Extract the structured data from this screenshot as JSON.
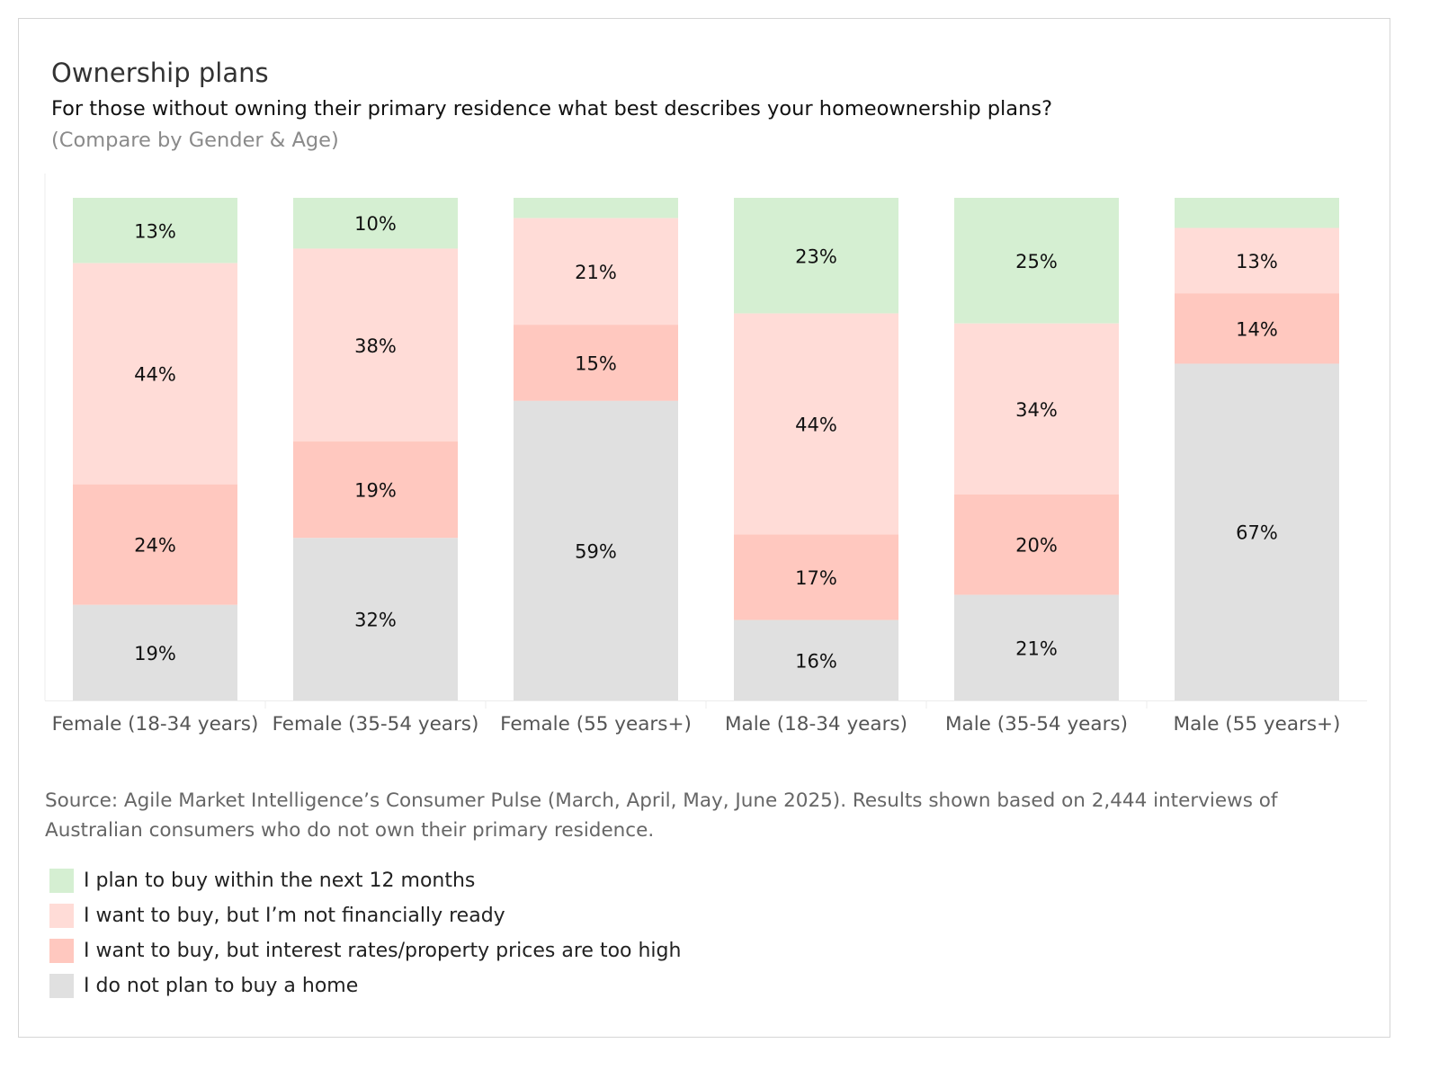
{
  "chart_data": {
    "type": "bar",
    "stacked": true,
    "title": "Ownership plans",
    "subtitle": "For those without owning their primary residence what best describes your homeownership plans?",
    "note": "(Compare by Gender & Age)",
    "categories": [
      "Female (18-34 years)",
      "Female (35-54 years)",
      "Female (55 years+)",
      "Male (18-34 years)",
      "Male (35-54 years)",
      "Male (55 years+)"
    ],
    "series": [
      {
        "name": "I plan to buy within the next 12 months",
        "color": "#d5efd2",
        "values": [
          13,
          10,
          4,
          23,
          25,
          6
        ],
        "labels": [
          "13%",
          "10%",
          "",
          "23%",
          "25%",
          ""
        ]
      },
      {
        "name": "I want to buy, but I’m not financially ready",
        "color": "#ffdcd7",
        "values": [
          44,
          38,
          21,
          44,
          34,
          13
        ],
        "labels": [
          "44%",
          "38%",
          "21%",
          "44%",
          "34%",
          "13%"
        ]
      },
      {
        "name": "I want to buy, but interest rates/property prices are too high",
        "color": "#ffc8bf",
        "values": [
          24,
          19,
          15,
          17,
          20,
          14
        ],
        "labels": [
          "24%",
          "19%",
          "15%",
          "17%",
          "20%",
          "14%"
        ]
      },
      {
        "name": "I do not plan to buy a home",
        "color": "#e0e0e0",
        "values": [
          19,
          32,
          59,
          16,
          21,
          67
        ],
        "labels": [
          "19%",
          "32%",
          "59%",
          "16%",
          "21%",
          "67%"
        ]
      }
    ],
    "ylim": [
      0,
      100
    ],
    "legend_position": "bottom-left",
    "grid": false
  },
  "source": "Source: Agile Market Intelligence’s Consumer Pulse (March, April, May, June 2025). Results shown based on 2,444 interviews of Australian consumers who do not own their primary residence."
}
